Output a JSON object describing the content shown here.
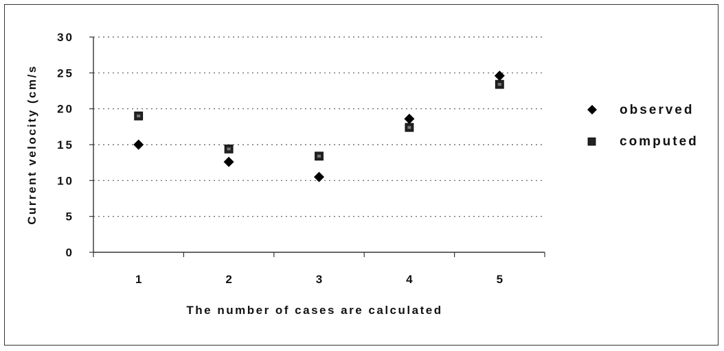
{
  "chart_data": {
    "type": "scatter",
    "title": "",
    "xlabel": "The number of cases are calculated",
    "ylabel": "Current velocity (cm/s",
    "categories": [
      "1",
      "2",
      "3",
      "4",
      "5"
    ],
    "ylim": [
      0,
      30
    ],
    "yticks": [
      "0",
      "5",
      "10",
      "15",
      "20",
      "25",
      "30"
    ],
    "grid": "horizontal-dotted",
    "legend_position": "right",
    "series": [
      {
        "name": "observed",
        "marker": "diamond",
        "color": "#000000",
        "values": [
          15.0,
          12.6,
          10.5,
          18.6,
          24.6
        ]
      },
      {
        "name": "computed",
        "marker": "square",
        "color": "#222222",
        "values": [
          19.0,
          14.4,
          13.4,
          17.4,
          23.4
        ]
      }
    ]
  }
}
